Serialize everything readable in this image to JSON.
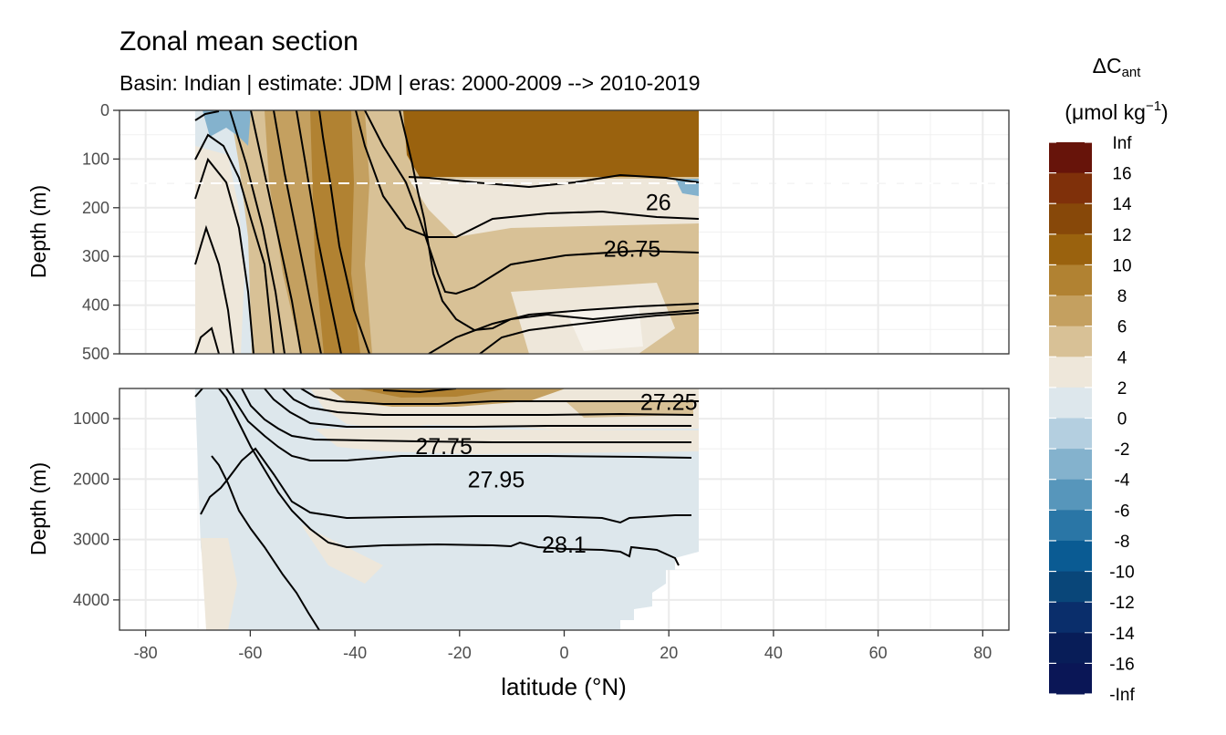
{
  "chart_data": {
    "type": "heatmap",
    "title": "Zonal mean section",
    "subtitle": "Basin: Indian | estimate: JDM  | eras: 2000-2009 --> 2010-2019",
    "xlabel": "latitude (°N)",
    "ylabel": "Depth (m)",
    "xlim": [
      -85,
      85
    ],
    "x_ticks": [
      -80,
      -60,
      -40,
      -20,
      0,
      20,
      40,
      60,
      80
    ],
    "data_lat_range": [
      -70,
      25.5
    ],
    "reference_depth_line": 150,
    "panels": [
      {
        "name": "upper",
        "ylim": [
          0,
          500
        ],
        "y_ticks": [
          0,
          100,
          200,
          300,
          400,
          500
        ],
        "isopycnal_labels": [
          {
            "text": "26",
            "lat": 18,
            "depth": 188
          },
          {
            "text": "26.75",
            "lat": 13,
            "depth": 284
          }
        ]
      },
      {
        "name": "lower",
        "ylim": [
          500,
          4500
        ],
        "y_ticks": [
          1000,
          2000,
          3000,
          4000
        ],
        "isopycnal_labels": [
          {
            "text": "27.25",
            "lat": 20,
            "depth": 720
          },
          {
            "text": "27.75",
            "lat": -23,
            "depth": 1450
          },
          {
            "text": "27.95",
            "lat": -13,
            "depth": 2000
          },
          {
            "text": "28.1",
            "lat": 0,
            "depth": 3080
          }
        ]
      }
    ],
    "legend": {
      "title_main": "ΔC",
      "title_sub": "ant",
      "unit_text": "(μmol kg",
      "unit_sup": "−1",
      "unit_close": ")",
      "breaks": [
        "Inf",
        "16",
        "14",
        "12",
        "10",
        "8",
        "6",
        "4",
        "2",
        "0",
        "-2",
        "-4",
        "-6",
        "-8",
        "-10",
        "-12",
        "-14",
        "-16",
        "-Inf"
      ],
      "colors": [
        "#67140a",
        "#7f300a",
        "#874809",
        "#9a620e",
        "#b18232",
        "#c4a060",
        "#d8c196",
        "#eee7da",
        "#dde7ec",
        "#b4cfe0",
        "#84b2cd",
        "#5796bb",
        "#2a76a6",
        "#0a5b93",
        "#094679",
        "#0a2e6b",
        "#081d58",
        "#0a1656"
      ]
    }
  }
}
